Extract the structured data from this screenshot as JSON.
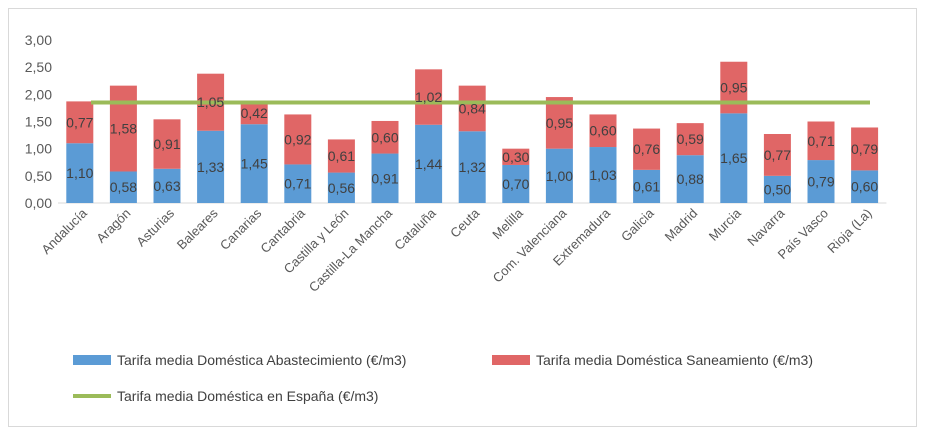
{
  "chart_data": {
    "type": "bar",
    "stacked": true,
    "categories": [
      "Andalucía",
      "Aragón",
      "Asturias",
      "Baleares",
      "Canarias",
      "Cantabria",
      "Castilla y León",
      "Castilla-La Mancha",
      "Cataluña",
      "Ceuta",
      "Melilla",
      "Com. Valenciana",
      "Extremadura",
      "Galicia",
      "Madrid",
      "Murcia",
      "Navarra",
      "País Vasco",
      "Rioja (La)"
    ],
    "series": [
      {
        "name": "Tarifa media Doméstica Abastecimiento (€/m3)",
        "kind": "bar",
        "color": "#5b9bd5",
        "values": [
          1.1,
          0.58,
          0.63,
          1.33,
          1.45,
          0.71,
          0.56,
          0.91,
          1.44,
          1.32,
          0.7,
          1.0,
          1.03,
          0.61,
          0.88,
          1.65,
          0.5,
          0.79,
          0.6
        ],
        "labels": [
          "1,10",
          "0,58",
          "0,63",
          "1,33",
          "1,45",
          "0,71",
          "0,56",
          "0,91",
          "1,44",
          "1,32",
          "0,70",
          "1,00",
          "1,03",
          "0,61",
          "0,88",
          "1,65",
          "0,50",
          "0,79",
          "0,60"
        ]
      },
      {
        "name": "Tarifa media Doméstica Saneamiento (€/m3)",
        "kind": "bar",
        "color": "#e06666",
        "values": [
          0.77,
          1.58,
          0.91,
          1.05,
          0.42,
          0.92,
          0.61,
          0.6,
          1.02,
          0.84,
          0.3,
          0.95,
          0.6,
          0.76,
          0.59,
          0.95,
          0.77,
          0.71,
          0.79
        ],
        "labels": [
          "0,77",
          "1,58",
          "0,91",
          "1,05",
          "0,42",
          "0,92",
          "0,61",
          "0,60",
          "1,02",
          "0,84",
          "0,30",
          "0,95",
          "0,60",
          "0,76",
          "0,59",
          "0,95",
          "0,77",
          "0,71",
          "0,79"
        ]
      },
      {
        "name": "Tarifa media Doméstica en España (€/m3)",
        "kind": "line",
        "color": "#9bbb59",
        "value": 1.85
      }
    ],
    "yticks": [
      "0,00",
      "0,50",
      "1,00",
      "1,50",
      "2,00",
      "2,50",
      "3,00"
    ],
    "ylim": [
      0,
      3
    ],
    "legend_position": "bottom",
    "grid": false
  }
}
